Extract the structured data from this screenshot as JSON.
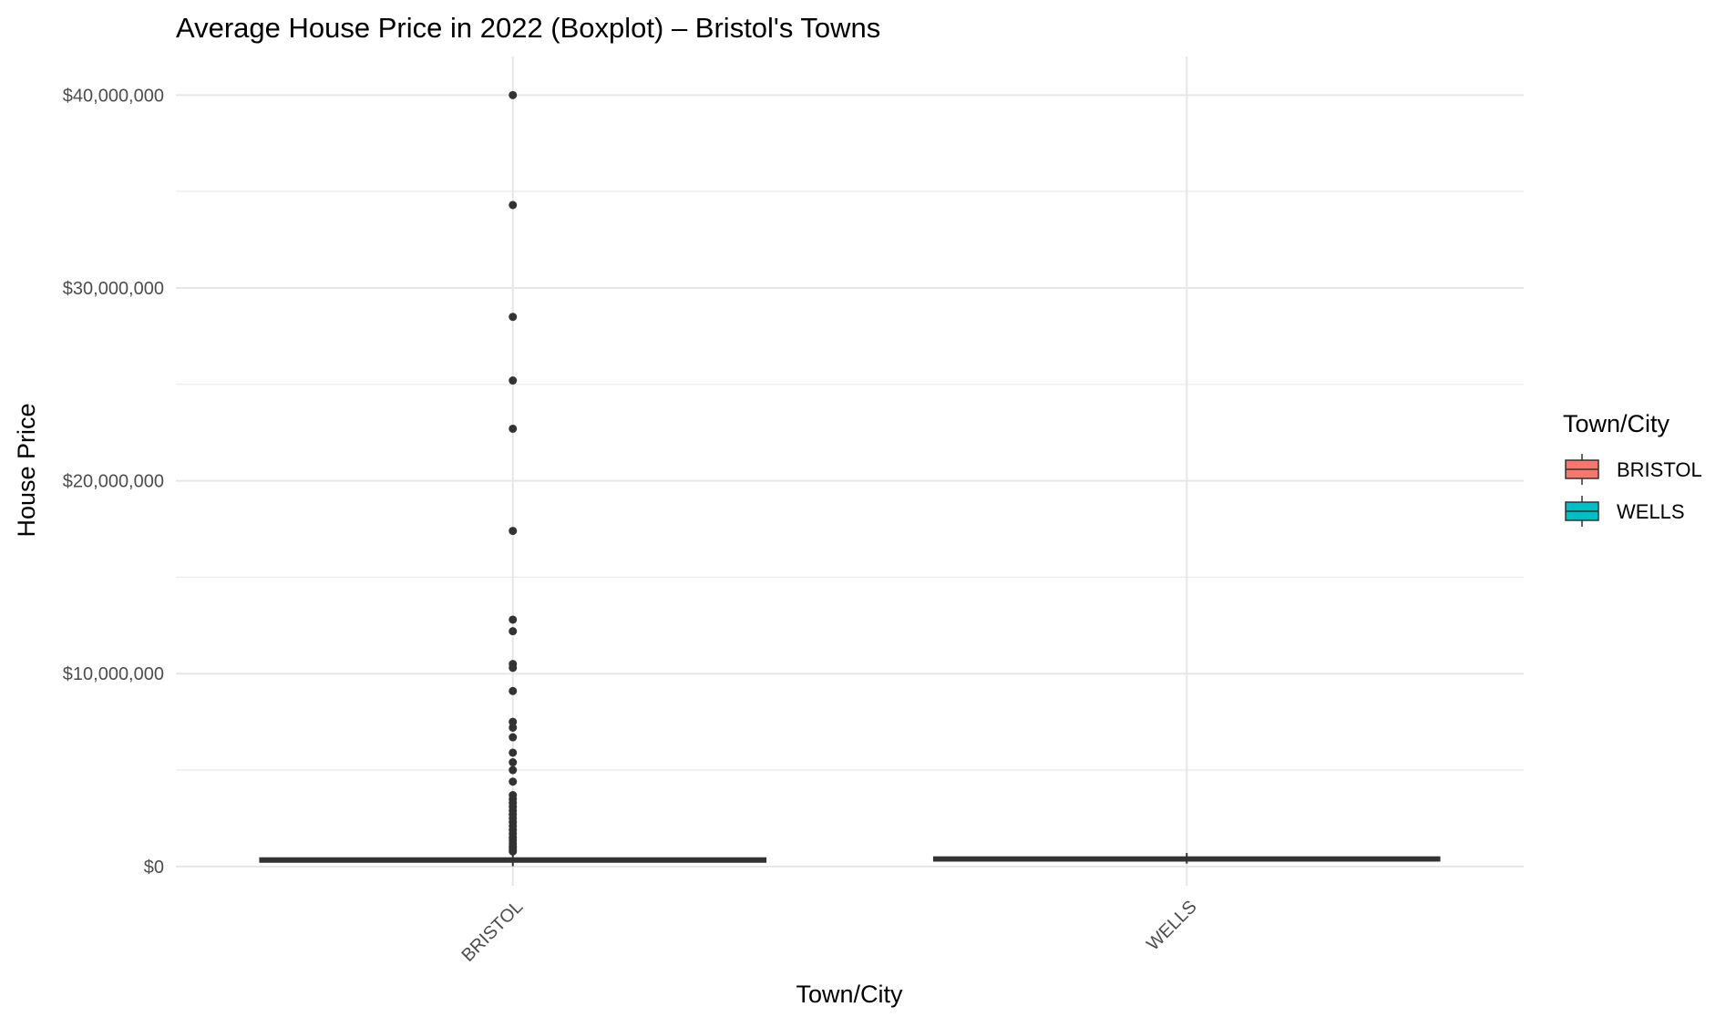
{
  "chart_data": {
    "type": "boxplot",
    "title": "Average House Price in 2022 (Boxplot) – Bristol's Towns",
    "xlabel": "Town/City",
    "ylabel": "House Price",
    "ylim": [
      -1000000,
      42000000
    ],
    "yticks": [
      {
        "value": 0,
        "label": "$0"
      },
      {
        "value": 10000000,
        "label": "$10,000,000"
      },
      {
        "value": 20000000,
        "label": "$20,000,000"
      },
      {
        "value": 30000000,
        "label": "$30,000,000"
      },
      {
        "value": 40000000,
        "label": "$40,000,000"
      }
    ],
    "categories": [
      "BRISTOL",
      "WELLS"
    ],
    "series": [
      {
        "name": "BRISTOL",
        "color": "#F8766D",
        "q1": 240000,
        "median": 330000,
        "q3": 430000,
        "whisker_low": 10000,
        "whisker_high": 720000,
        "outliers": [
          40000000,
          34300000,
          28500000,
          25200000,
          22700000,
          17400000,
          12800000,
          12200000,
          10500000,
          10300000,
          9100000,
          7500000,
          7200000,
          6700000,
          5900000,
          5400000,
          5000000,
          4400000,
          3700000,
          3500000,
          3300000,
          3100000,
          2900000,
          2700000,
          2500000,
          2300000,
          2100000,
          1900000,
          1700000,
          1500000,
          1350000,
          1200000,
          1050000,
          950000,
          850000,
          780000
        ]
      },
      {
        "name": "WELLS",
        "color": "#00BFC4",
        "q1": 300000,
        "median": 380000,
        "q3": 480000,
        "whisker_low": 150000,
        "whisker_high": 700000,
        "outliers": []
      }
    ],
    "legend": {
      "title": "Town/City",
      "position": "right"
    },
    "grid": true
  }
}
